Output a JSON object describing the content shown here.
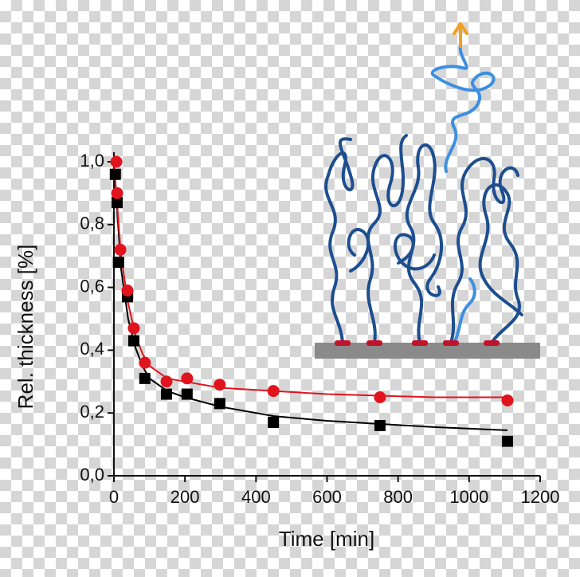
{
  "chart_data": {
    "type": "scatter",
    "x_label": "Time [min]",
    "y_label": "Rel. thickness [%]",
    "xlim": [
      0,
      1200
    ],
    "xticks": [
      0,
      200,
      400,
      600,
      800,
      1000,
      1200
    ],
    "ylim": [
      0,
      1.0
    ],
    "yticks": [
      {
        "value": 0,
        "label": "0,0"
      },
      {
        "value": 0.2,
        "label": "0,2"
      },
      {
        "value": 0.4,
        "label": "0,4"
      },
      {
        "value": 0.6,
        "label": "0,6"
      },
      {
        "value": 0.8,
        "label": "0,8"
      },
      {
        "value": 1.0,
        "label": "1,0"
      }
    ],
    "series": [
      {
        "type": "line",
        "color": "#000000",
        "x": [
          0,
          20,
          40,
          60,
          80,
          100,
          150,
          200,
          300,
          450,
          600,
          750,
          900,
          1108
        ],
        "values": [
          1.0,
          0.66,
          0.5,
          0.41,
          0.35,
          0.31,
          0.27,
          0.25,
          0.22,
          0.19,
          0.175,
          0.165,
          0.155,
          0.145
        ]
      },
      {
        "type": "line",
        "color": "#e0141e",
        "x": [
          0,
          20,
          40,
          60,
          80,
          100,
          150,
          200,
          300,
          450,
          600,
          750,
          900,
          1108
        ],
        "values": [
          1.0,
          0.7,
          0.55,
          0.45,
          0.39,
          0.35,
          0.31,
          0.3,
          0.28,
          0.27,
          0.26,
          0.255,
          0.25,
          0.25
        ]
      },
      {
        "type": "scatter",
        "marker": "square",
        "color": "#000000",
        "x": [
          4,
          9,
          13,
          38,
          56,
          87,
          148,
          206,
          298,
          449,
          749,
          1108
        ],
        "values": [
          0.96,
          0.87,
          0.68,
          0.57,
          0.43,
          0.31,
          0.26,
          0.26,
          0.23,
          0.17,
          0.16,
          0.11
        ]
      },
      {
        "type": "scatter",
        "marker": "circle",
        "color": "#e0141e",
        "x": [
          7,
          9,
          18,
          38,
          56,
          87,
          148,
          206,
          298,
          449,
          749,
          1108
        ],
        "values": [
          1.0,
          0.9,
          0.72,
          0.59,
          0.47,
          0.36,
          0.3,
          0.31,
          0.29,
          0.27,
          0.25,
          0.24
        ]
      }
    ]
  }
}
